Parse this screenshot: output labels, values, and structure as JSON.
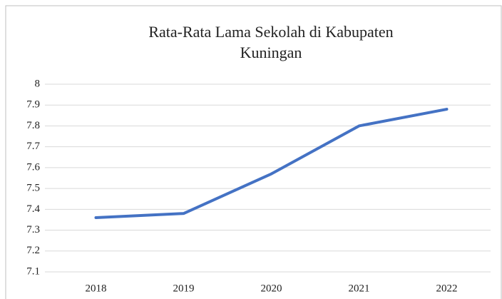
{
  "chart_data": {
    "type": "line",
    "title": "Rata-Rata Lama Sekolah di Kabupaten Kuningan",
    "categories": [
      "2018",
      "2019",
      "2020",
      "2021",
      "2022"
    ],
    "values": [
      7.36,
      7.38,
      7.57,
      7.8,
      7.88
    ],
    "color": "#4472c4",
    "ylim": [
      7.1,
      8
    ],
    "yticks": [
      7.1,
      7.2,
      7.3,
      7.4,
      7.5,
      7.6,
      7.7,
      7.8,
      7.9,
      8
    ],
    "grid": true
  }
}
